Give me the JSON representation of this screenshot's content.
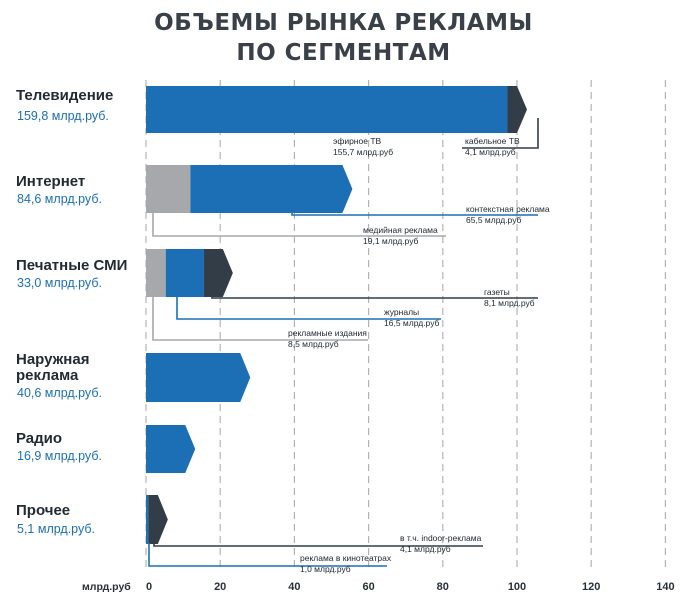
{
  "title_lines": [
    "ОБЪЕМЫ РЫНКА РЕКЛАМЫ",
    "ПО СЕГМЕНТАМ"
  ],
  "colors": {
    "blue": "#1c6fb5",
    "dark": "#323d47",
    "gray": "#a6a8ab",
    "grid": "#b3b3b3",
    "value_text": "#1c6fb5"
  },
  "chart_data": {
    "type": "bar",
    "orientation": "horizontal",
    "stacked": true,
    "title": "ОБЪЕМЫ РЫНКА РЕКЛАМЫ ПО СЕГМЕНТАМ",
    "xlabel": "млрд.руб",
    "xlim": [
      0,
      140
    ],
    "xticks": [
      "0",
      "20",
      "40",
      "60",
      "80",
      "100",
      "120",
      "140"
    ],
    "grid": true,
    "categories": [
      {
        "name_lines": [
          "Телевидение"
        ],
        "value_label": "159,8 млрд.руб.",
        "total": 159.8,
        "segments": [
          {
            "value": 155.7,
            "color": "blue",
            "label_lines": [
              "эфирное ТВ",
              "155,7 млрд.руб"
            ]
          },
          {
            "value": 4.1,
            "color": "dark",
            "label_lines": [
              "кабельное ТВ",
              "4,1 млрд.руб"
            ]
          }
        ]
      },
      {
        "name_lines": [
          "Интернет"
        ],
        "value_label": "84,6 млрд.руб.",
        "total": 84.6,
        "segments": [
          {
            "value": 19.1,
            "color": "gray",
            "label_lines": [
              "медийная реклама",
              "19,1 млрд.руб"
            ]
          },
          {
            "value": 65.5,
            "color": "blue",
            "label_lines": [
              "контекстная реклама",
              "65,5 млрд.руб"
            ]
          }
        ]
      },
      {
        "name_lines": [
          "Печатные СМИ"
        ],
        "value_label": "33,0 млрд.руб.",
        "total": 33.0,
        "segments": [
          {
            "value": 8.5,
            "color": "gray",
            "label_lines": [
              "рекламные издания",
              "8,5 млрд.руб"
            ]
          },
          {
            "value": 16.5,
            "color": "blue",
            "label_lines": [
              "журналы",
              "16,5 млрд.руб"
            ]
          },
          {
            "value": 8.1,
            "color": "dark",
            "label_lines": [
              "газеты",
              "8,1 млрд.руб"
            ]
          }
        ]
      },
      {
        "name_lines": [
          "Наружная",
          "реклама"
        ],
        "value_label": "40,6 млрд.руб.",
        "total": 40.6,
        "segments": [
          {
            "value": 40.6,
            "color": "blue",
            "label_lines": []
          }
        ]
      },
      {
        "name_lines": [
          "Радио"
        ],
        "value_label": "16,9 млрд.руб.",
        "total": 16.9,
        "segments": [
          {
            "value": 16.9,
            "color": "blue",
            "label_lines": []
          }
        ]
      },
      {
        "name_lines": [
          "Прочее"
        ],
        "value_label": "5,1 млрд.руб.",
        "total": 5.1,
        "segments": [
          {
            "value": 1.0,
            "color": "blue",
            "label_lines": [
              "реклама в кинотеатрах",
              "1,0 млрд.руб"
            ]
          },
          {
            "value": 4.1,
            "color": "dark",
            "label_lines": [
              "в т.ч. indoor-реклама",
              "4,1 млрд.руб"
            ]
          }
        ]
      }
    ]
  }
}
